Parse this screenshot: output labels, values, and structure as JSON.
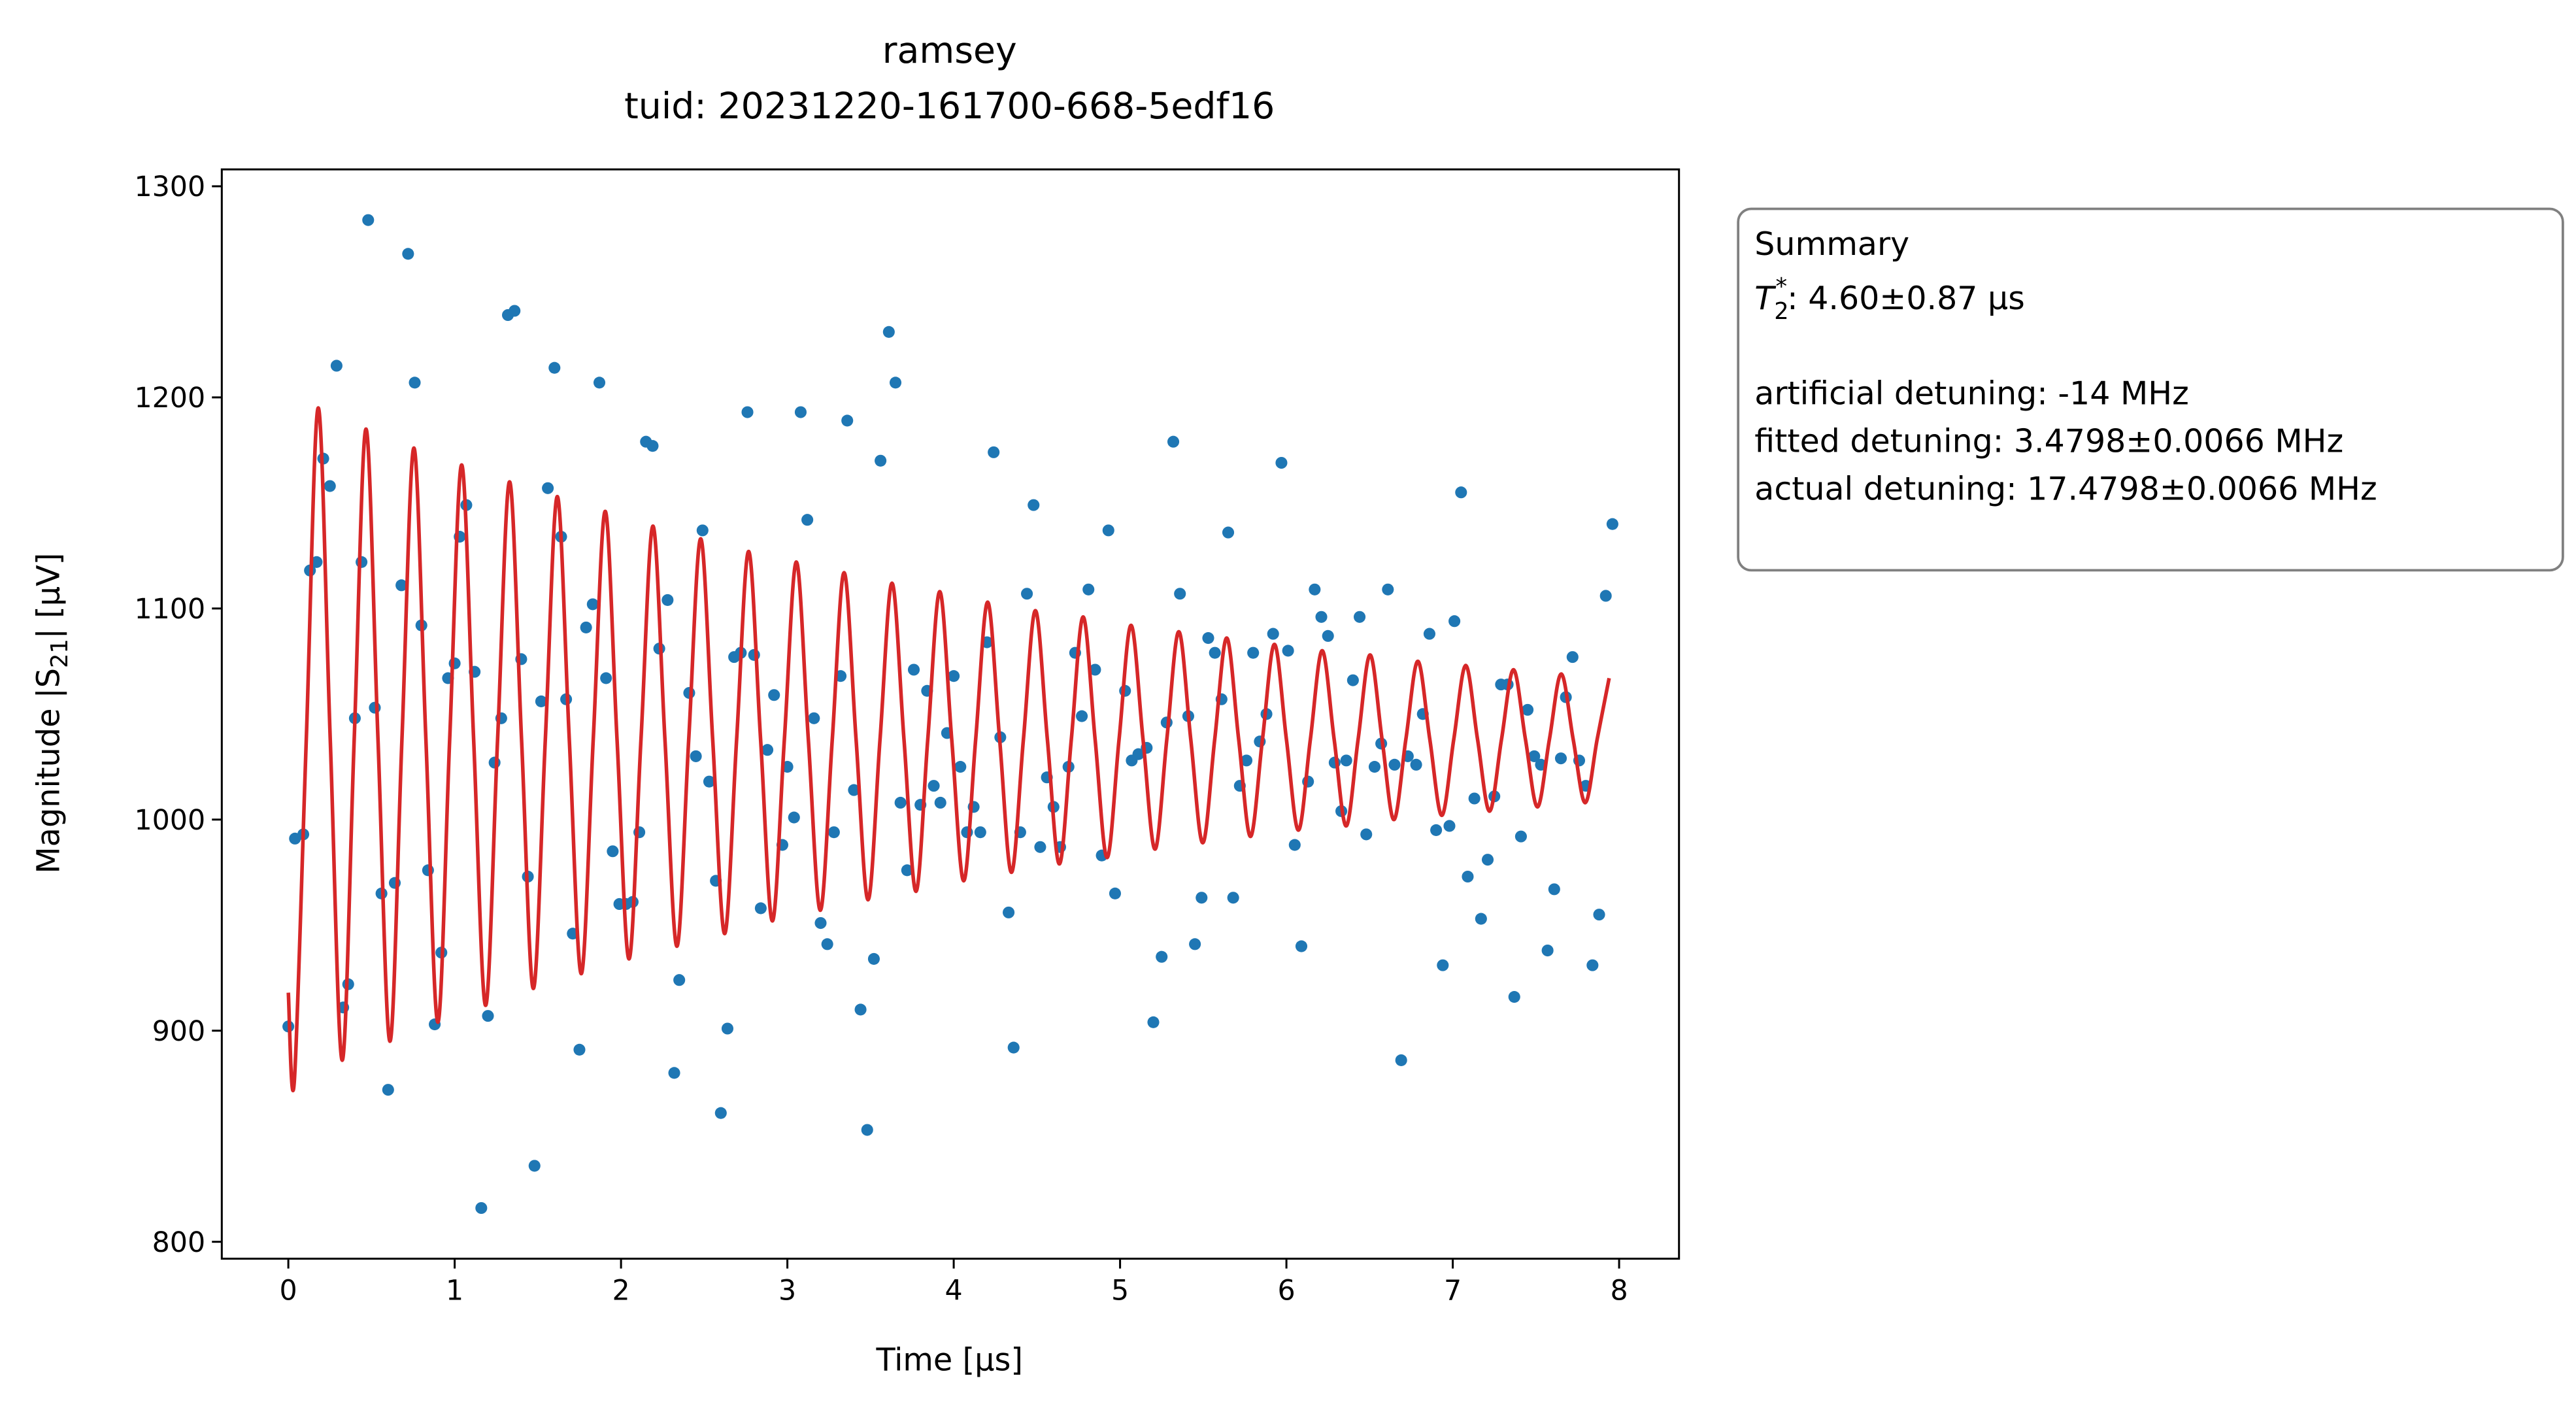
{
  "chart_data": {
    "type": "scatter",
    "title": [
      "ramsey",
      "tuid: 20231220-161700-668-5edf16"
    ],
    "xlabel": "Time [µs]",
    "ylabel": {
      "main": "Magnitude |S",
      "sub": "21",
      "rest": "| [µV]"
    },
    "xlim": [
      -0.4,
      8.36
    ],
    "ylim": [
      792,
      1308
    ],
    "xticks": [
      0,
      1,
      2,
      3,
      4,
      5,
      6,
      7,
      8
    ],
    "yticks": [
      800,
      900,
      1000,
      1100,
      1200,
      1300
    ],
    "grid": false,
    "series": [
      {
        "type": "scatter",
        "color": "#1f77b4",
        "x": [
          0,
          0.04,
          0.09,
          0.13,
          0.17,
          0.21,
          0.25,
          0.29,
          0.33,
          0.36,
          0.4,
          0.44,
          0.48,
          0.52,
          0.56,
          0.6,
          0.64,
          0.68,
          0.72,
          0.76,
          0.8,
          0.84,
          0.88,
          0.92,
          0.96,
          1.0,
          1.03,
          1.07,
          1.12,
          1.16,
          1.2,
          1.24,
          1.28,
          1.32,
          1.36,
          1.4,
          1.44,
          1.48,
          1.52,
          1.56,
          1.6,
          1.64,
          1.67,
          1.71,
          1.75,
          1.79,
          1.83,
          1.87,
          1.91,
          1.95,
          1.99,
          2.03,
          2.07,
          2.11,
          2.15,
          2.19,
          2.23,
          2.28,
          2.32,
          2.35,
          2.41,
          2.45,
          2.49,
          2.53,
          2.57,
          2.6,
          2.64,
          2.68,
          2.72,
          2.76,
          2.8,
          2.84,
          2.88,
          2.92,
          2.97,
          3.0,
          3.04,
          3.08,
          3.12,
          3.16,
          3.2,
          3.24,
          3.28,
          3.32,
          3.36,
          3.4,
          3.44,
          3.48,
          3.52,
          3.56,
          3.61,
          3.65,
          3.68,
          3.72,
          3.76,
          3.8,
          3.84,
          3.88,
          3.92,
          3.96,
          4.0,
          4.04,
          4.08,
          4.12,
          4.16,
          4.2,
          4.24,
          4.28,
          4.33,
          4.36,
          4.4,
          4.44,
          4.48,
          4.52,
          4.56,
          4.6,
          4.64,
          4.69,
          4.73,
          4.77,
          4.81,
          4.85,
          4.89,
          4.93,
          4.97,
          5.03,
          5.07,
          5.11,
          5.16,
          5.2,
          5.25,
          5.28,
          5.32,
          5.36,
          5.41,
          5.45,
          5.49,
          5.53,
          5.57,
          5.61,
          5.65,
          5.68,
          5.72,
          5.76,
          5.8,
          5.84,
          5.88,
          5.92,
          5.97,
          6.01,
          6.05,
          6.09,
          6.13,
          6.17,
          6.21,
          6.25,
          6.29,
          6.33,
          6.36,
          6.4,
          6.44,
          6.48,
          6.53,
          6.57,
          6.61,
          6.65,
          6.69,
          6.73,
          6.78,
          6.82,
          6.86,
          6.9,
          6.94,
          6.98,
          7.01,
          7.05,
          7.09,
          7.13,
          7.17,
          7.21,
          7.25,
          7.29,
          7.33,
          7.37,
          7.41,
          7.45,
          7.49,
          7.53,
          7.57,
          7.61,
          7.65,
          7.68,
          7.72,
          7.76,
          7.8,
          7.84,
          7.88,
          7.92,
          7.96
        ],
        "values": [
          902,
          991,
          993,
          1118,
          1122,
          1171,
          1158,
          1215,
          911,
          922,
          1048,
          1122,
          1284,
          1053,
          965,
          872,
          970,
          1111,
          1268,
          1207,
          1092,
          976,
          903,
          937,
          1067,
          1074,
          1134,
          1149,
          1070,
          816,
          907,
          1027,
          1048,
          1239,
          1241,
          1076,
          973,
          836,
          1056,
          1157,
          1214,
          1134,
          1057,
          946,
          891,
          1091,
          1102,
          1207,
          1067,
          985,
          960,
          960,
          961,
          994,
          1179,
          1177,
          1081,
          1104,
          880,
          924,
          1060,
          1030,
          1137,
          1018,
          971,
          861,
          901,
          1077,
          1079,
          1193,
          1078,
          958,
          1033,
          1059,
          988,
          1025,
          1001,
          1193,
          1142,
          1048,
          951,
          941,
          994,
          1068,
          1189,
          1014,
          910,
          853,
          934,
          1170,
          1231,
          1207,
          1008,
          976,
          1071,
          1007,
          1061,
          1016,
          1008,
          1041,
          1068,
          1025,
          994,
          1006,
          994,
          1084,
          1174,
          1039,
          956,
          892,
          994,
          1107,
          1149,
          987,
          1020,
          1006,
          987,
          1025,
          1079,
          1049,
          1109,
          1071,
          983,
          1137,
          965,
          1061,
          1028,
          1031,
          1034,
          904,
          935,
          1046,
          1179,
          1107,
          1049,
          941,
          963,
          1086,
          1079,
          1057,
          1136,
          963,
          1016,
          1028,
          1079,
          1037,
          1050,
          1088,
          1169,
          1080,
          988,
          940,
          1018,
          1109,
          1096,
          1087,
          1027,
          1004,
          1028,
          1066,
          1096,
          993,
          1025,
          1036,
          1109,
          1026,
          886,
          1030,
          1026,
          1050,
          1088,
          995,
          931,
          997,
          1094,
          1155,
          973,
          1010,
          953,
          981,
          1011,
          1064,
          1064,
          916,
          992,
          1052,
          1030,
          1026,
          938,
          967,
          1029,
          1058,
          1077,
          1028,
          1016,
          931,
          955,
          1106,
          1140
        ]
      },
      {
        "type": "line",
        "color": "#d62728",
        "x": [
          0,
          0.036,
          0.108,
          0.18,
          0.252,
          0.324,
          0.396,
          0.467,
          0.539,
          0.611,
          0.683,
          0.755,
          0.827,
          0.899,
          0.97,
          1.042,
          1.114,
          1.186,
          1.258,
          1.33,
          1.402,
          1.473,
          1.545,
          1.617,
          1.689,
          1.761,
          1.833,
          1.905,
          1.976,
          2.048,
          2.12,
          2.192,
          2.264,
          2.336,
          2.407,
          2.479,
          2.551,
          2.623,
          2.695,
          2.767,
          2.839,
          2.91,
          2.982,
          3.054,
          3.126,
          3.198,
          3.27,
          3.341,
          3.413,
          3.485,
          3.557,
          3.629,
          3.701,
          3.773,
          3.844,
          3.916,
          3.988,
          4.06,
          4.132,
          4.204,
          4.276,
          4.347,
          4.419,
          4.491,
          4.563,
          4.635,
          4.707,
          4.778,
          4.85,
          4.922,
          4.994,
          5.066,
          5.138,
          5.21,
          5.281,
          5.353,
          5.425,
          5.497,
          5.569,
          5.641,
          5.713,
          5.784,
          5.856,
          5.928,
          6.0,
          6.072,
          6.144,
          6.215,
          6.287,
          6.359,
          6.431,
          6.503,
          6.575,
          6.646,
          6.718,
          6.79,
          6.862,
          6.934,
          7.006,
          7.078,
          7.149,
          7.221,
          7.293,
          7.365,
          7.437,
          7.509,
          7.581,
          7.652,
          7.724,
          7.796,
          7.868,
          7.94
        ],
        "values": [
          918,
          876,
          1038,
          1195,
          1038,
          886,
          1038,
          1185,
          1038,
          895,
          1038,
          1176,
          1038,
          904,
          1038,
          1168,
          1038,
          912,
          1038,
          1160,
          1038,
          920,
          1038,
          1153,
          1038,
          927,
          1038,
          1146,
          1038,
          934,
          1038,
          1139,
          1038,
          940,
          1038,
          1133,
          1038,
          946,
          1038,
          1127,
          1038,
          952,
          1038,
          1122,
          1038,
          957,
          1038,
          1117,
          1038,
          962,
          1038,
          1112,
          1038,
          966,
          1038,
          1108,
          1038,
          971,
          1038,
          1103,
          1038,
          975,
          1038,
          1099,
          1038,
          979,
          1038,
          1096,
          1038,
          982,
          1038,
          1092,
          1038,
          986,
          1038,
          1089,
          1038,
          989,
          1038,
          1086,
          1038,
          992,
          1038,
          1083,
          1038,
          995,
          1038,
          1080,
          1038,
          997,
          1038,
          1078,
          1038,
          1000,
          1038,
          1075,
          1038,
          1002,
          1038,
          1073,
          1038,
          1004,
          1038,
          1071,
          1038,
          1006,
          1038,
          1069,
          1038,
          1008,
          1038,
          1067
        ]
      }
    ],
    "summary": {
      "title": "Summary",
      "t2": {
        "symbol": "T",
        "sub": "2",
        "sup": "*",
        "text": ": 4.60±0.87 µs"
      },
      "lines": [
        "artificial detuning: -14 MHz",
        "fitted detuning: 3.4798±0.0066 MHz",
        "actual detuning: 17.4798±0.0066 MHz"
      ]
    }
  }
}
